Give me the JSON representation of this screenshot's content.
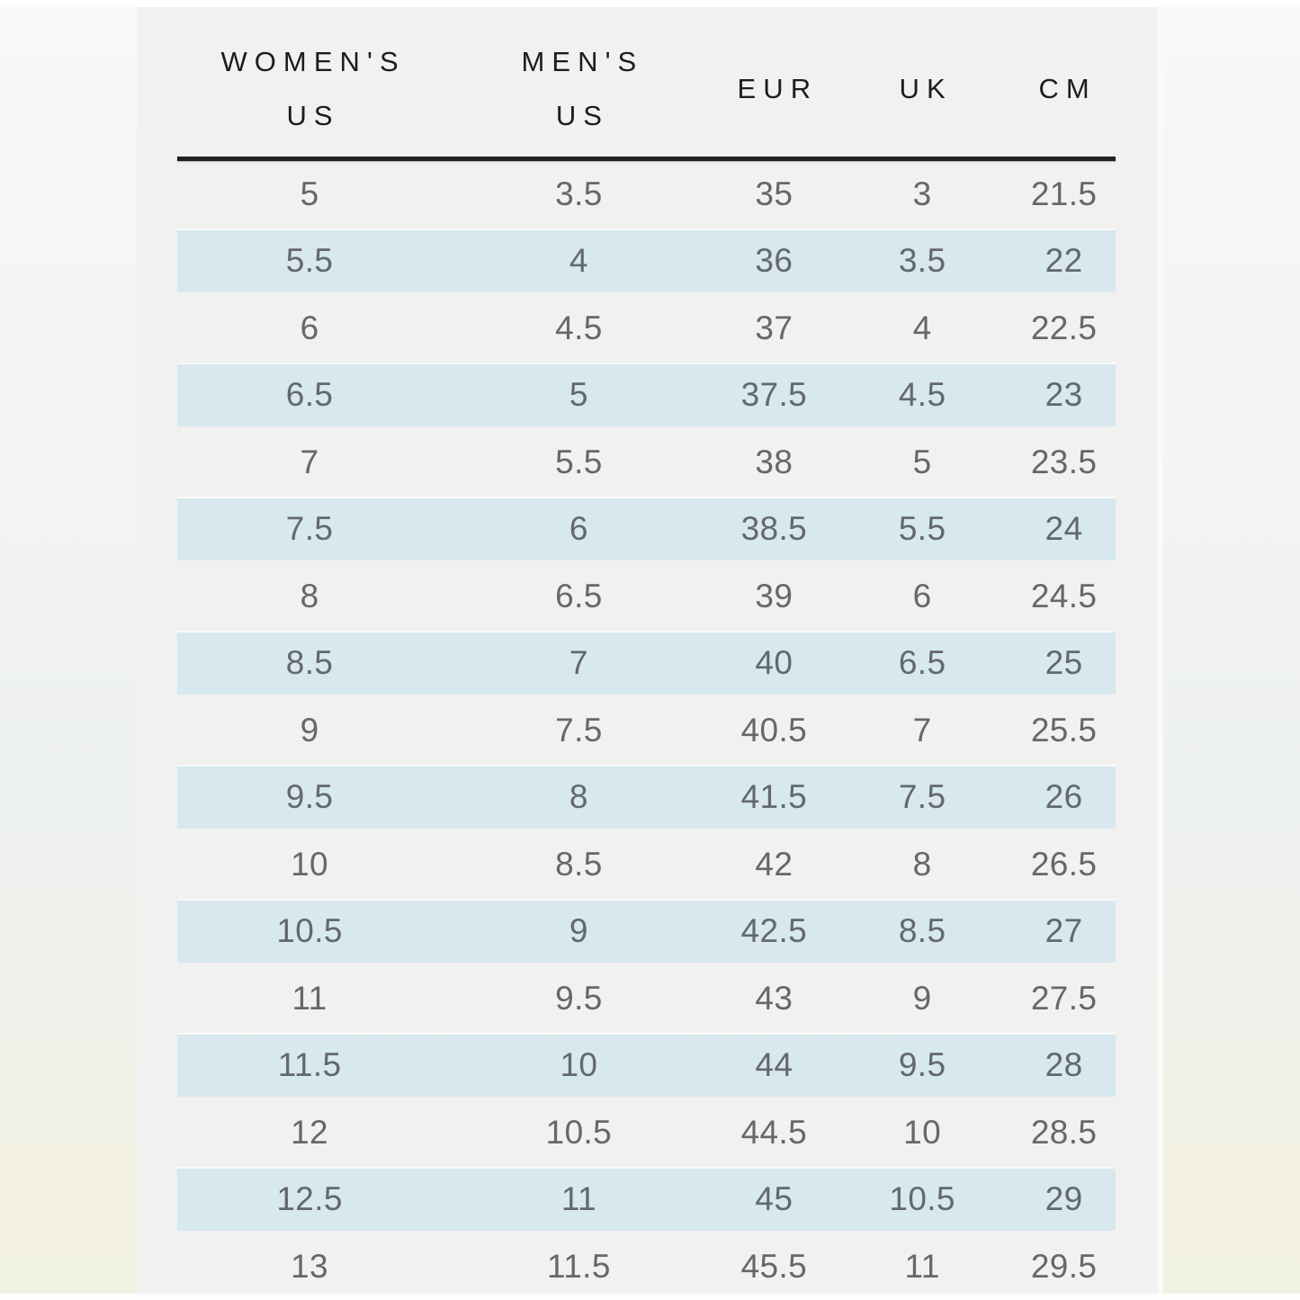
{
  "chart_data": {
    "type": "table",
    "columns": [
      "WOMEN'S US",
      "MEN'S US",
      "EUR",
      "UK",
      "CM"
    ],
    "rows": [
      {
        "highlighted": false,
        "values": [
          "5",
          "3.5",
          "35",
          "3",
          "21.5"
        ]
      },
      {
        "highlighted": true,
        "values": [
          "5.5",
          "4",
          "36",
          "3.5",
          "22"
        ]
      },
      {
        "highlighted": false,
        "values": [
          "6",
          "4.5",
          "37",
          "4",
          "22.5"
        ]
      },
      {
        "highlighted": true,
        "values": [
          "6.5",
          "5",
          "37.5",
          "4.5",
          "23"
        ]
      },
      {
        "highlighted": false,
        "values": [
          "7",
          "5.5",
          "38",
          "5",
          "23.5"
        ]
      },
      {
        "highlighted": true,
        "values": [
          "7.5",
          "6",
          "38.5",
          "5.5",
          "24"
        ]
      },
      {
        "highlighted": false,
        "values": [
          "8",
          "6.5",
          "39",
          "6",
          "24.5"
        ]
      },
      {
        "highlighted": true,
        "values": [
          "8.5",
          "7",
          "40",
          "6.5",
          "25"
        ]
      },
      {
        "highlighted": false,
        "values": [
          "9",
          "7.5",
          "40.5",
          "7",
          "25.5"
        ]
      },
      {
        "highlighted": true,
        "values": [
          "9.5",
          "8",
          "41.5",
          "7.5",
          "26"
        ]
      },
      {
        "highlighted": false,
        "values": [
          "10",
          "8.5",
          "42",
          "8",
          "26.5"
        ]
      },
      {
        "highlighted": true,
        "values": [
          "10.5",
          "9",
          "42.5",
          "8.5",
          "27"
        ]
      },
      {
        "highlighted": false,
        "values": [
          "11",
          "9.5",
          "43",
          "9",
          "27.5"
        ]
      },
      {
        "highlighted": true,
        "values": [
          "11.5",
          "10",
          "44",
          "9.5",
          "28"
        ]
      },
      {
        "highlighted": false,
        "values": [
          "12",
          "10.5",
          "44.5",
          "10",
          "28.5"
        ]
      },
      {
        "highlighted": true,
        "values": [
          "12.5",
          "11",
          "45",
          "10.5",
          "29"
        ]
      },
      {
        "highlighted": false,
        "values": [
          "13",
          "11.5",
          "45.5",
          "11",
          "29.5"
        ]
      }
    ]
  },
  "header": {
    "womens_us": [
      "WOMEN'S",
      "US"
    ],
    "mens_us": [
      "MEN'S",
      "US"
    ],
    "eur": "EUR",
    "uk": "UK",
    "cm": "CM"
  },
  "colors": {
    "highlight_row": "#d7e8ef",
    "panel_background": "#f1f1f0",
    "header_text": "#1c1c1c",
    "data_text": "#64686d",
    "rule": "#202020"
  }
}
